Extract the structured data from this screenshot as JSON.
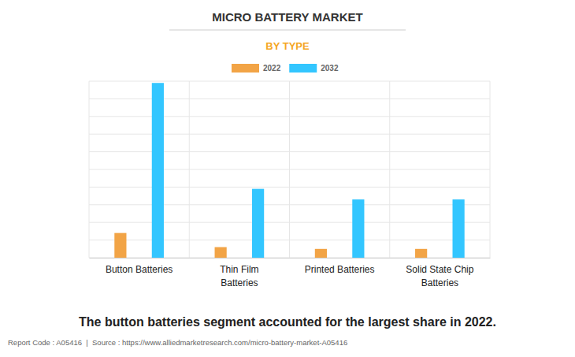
{
  "chart_data": {
    "type": "bar",
    "title": "MICRO BATTERY MARKET",
    "subtitle": "BY TYPE",
    "caption": "The button batteries segment accounted for the largest share in 2022.",
    "footer": "Report Code : A05416  |  Source : https://www.alliedmarketresearch.com/micro-battery-market-A05416",
    "categories": [
      "Button Batteries",
      "Thin Film Batteries",
      "Printed Batteries",
      "Solid State Chip Batteries"
    ],
    "series": [
      {
        "name": "2022",
        "color": "#f2a446",
        "values": [
          1.4,
          0.6,
          0.5,
          0.5
        ]
      },
      {
        "name": "2032",
        "color": "#33c6ff",
        "values": [
          9.9,
          3.9,
          3.3,
          3.3
        ]
      }
    ],
    "ylim": [
      0,
      10
    ],
    "yticks": [
      0,
      1,
      2,
      3,
      4,
      5,
      6,
      7,
      8,
      9,
      10
    ],
    "grid": true,
    "legend": "top",
    "tick_labels": "x"
  }
}
